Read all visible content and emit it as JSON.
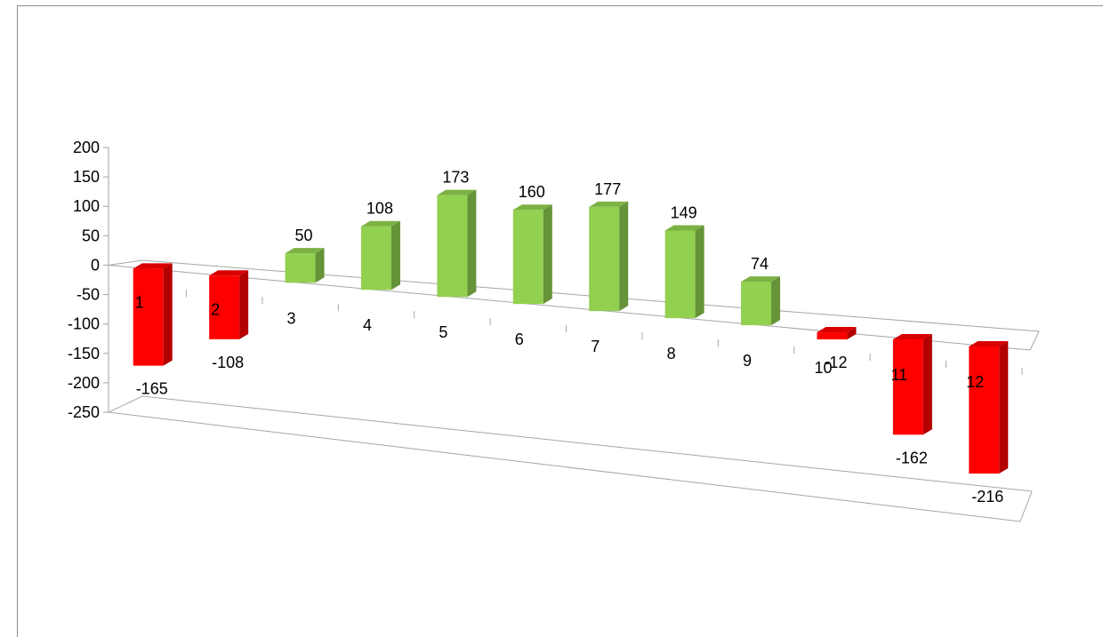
{
  "chart_data": {
    "type": "bar",
    "categories": [
      "1",
      "2",
      "3",
      "4",
      "5",
      "6",
      "7",
      "8",
      "9",
      "10",
      "11",
      "12"
    ],
    "values": [
      -165,
      -108,
      50,
      108,
      173,
      160,
      177,
      149,
      74,
      -12,
      -162,
      -216
    ],
    "data_labels": [
      "-165",
      "-108",
      "50",
      "108",
      "173",
      "160",
      "177",
      "149",
      "74",
      "-12",
      "-162",
      "-216"
    ],
    "ylim": [
      -250,
      200
    ],
    "y_ticks": [
      "200",
      "150",
      "100",
      "50",
      "0",
      "-50",
      "-100",
      "-150",
      "-200",
      "-250"
    ],
    "y_tick_values": [
      200,
      150,
      100,
      50,
      0,
      -50,
      -100,
      -150,
      -200,
      -250
    ],
    "style": "3d-column",
    "colors": {
      "positive": "#92d050",
      "negative": "#ff0000",
      "axis": "#a6a6a6"
    },
    "grid": false,
    "legend": "none"
  }
}
